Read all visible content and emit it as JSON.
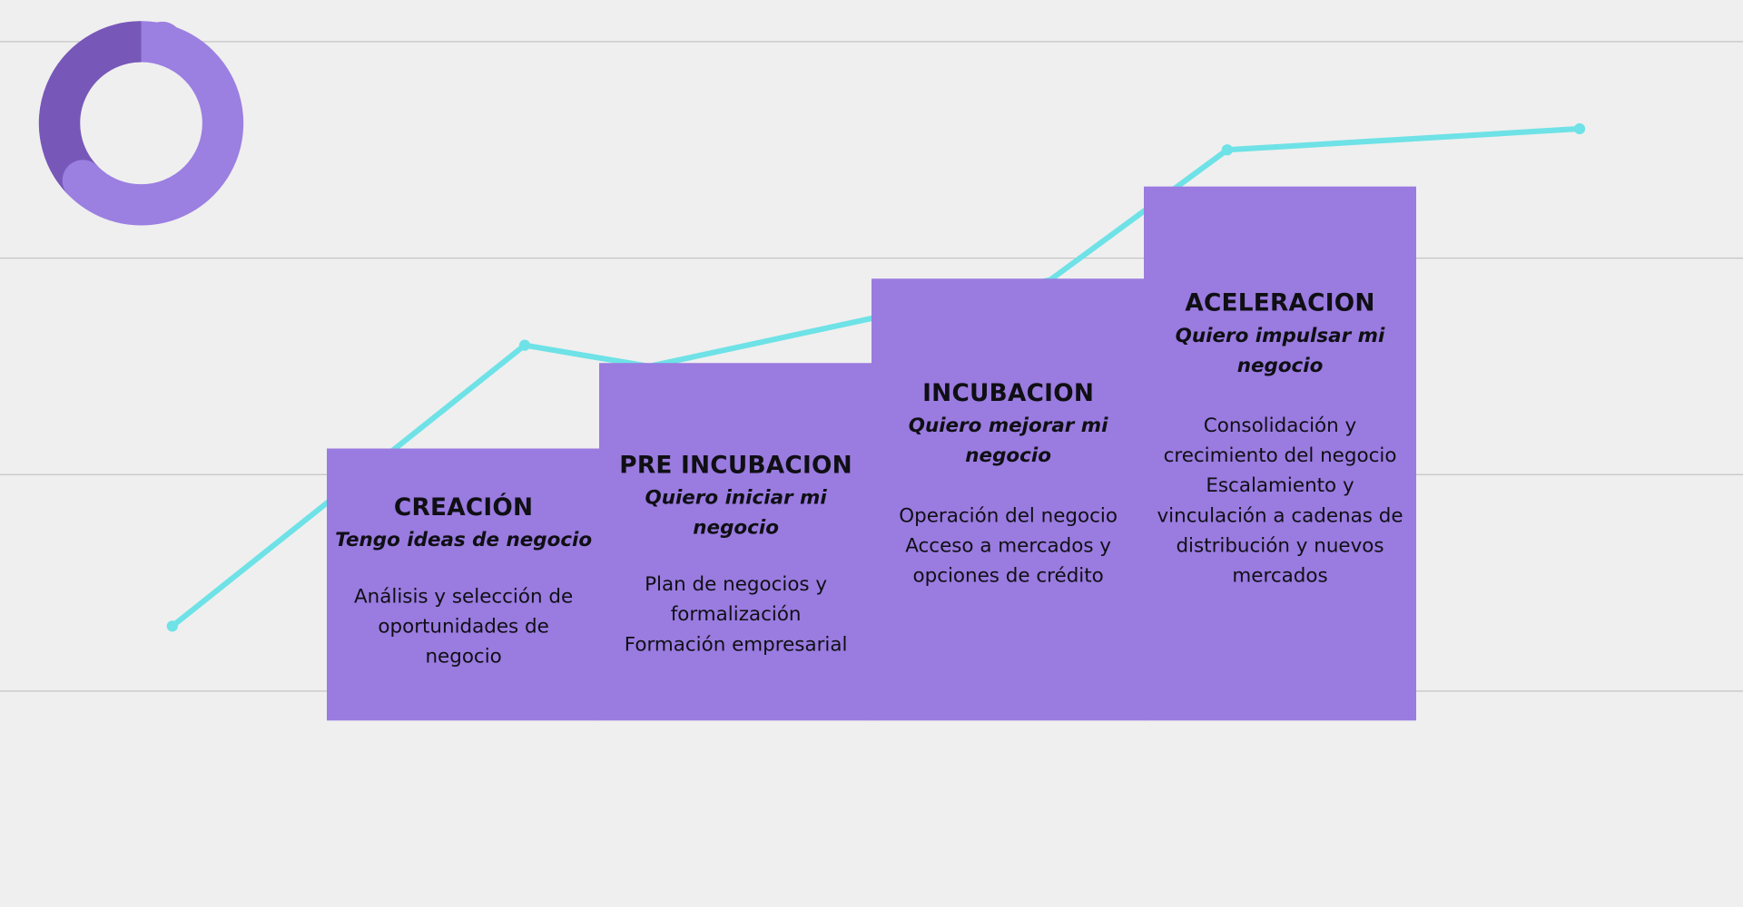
{
  "colors": {
    "background": "#efefef",
    "block": "#9a7be0",
    "line": "#6ee2e6",
    "donut_light": "#9b7fe1",
    "donut_dark": "#7758b8",
    "text": "#0f0f14"
  },
  "steps": [
    {
      "title": "CREACIÓN",
      "subtitle": "Tengo ideas de negocio",
      "body": "Análisis y selección de\noportunidades de\nnegocio"
    },
    {
      "title": "PRE INCUBACION",
      "subtitle": "Quiero iniciar mi negocio",
      "body": "Plan de negocios y\nformalización\nFormación empresarial"
    },
    {
      "title": "INCUBACION",
      "subtitle": "Quiero mejorar mi\nnegocio",
      "body": "Operación del negocio\nAcceso a mercados y\nopciones de crédito"
    },
    {
      "title": "ACELERACION",
      "subtitle": "Quiero impulsar mi\nnegocio",
      "body": "Consolidación y\ncrecimiento del negocio\nEscalamiento y\nvinculación a cadenas de\ndistribución y nuevos\nmercados"
    }
  ]
}
